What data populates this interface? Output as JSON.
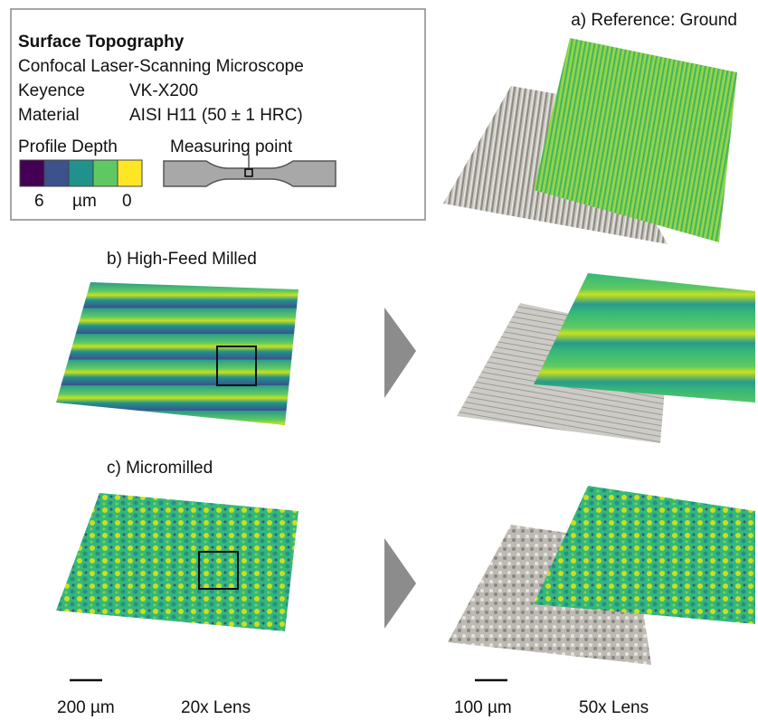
{
  "legend": {
    "title": "Surface Topography",
    "instrument": "Confocal Laser-Scanning Microscope",
    "rows": [
      [
        "Keyence",
        "VK-X200"
      ],
      [
        "Material",
        "AISI H11 (50 ± 1 HRC)"
      ]
    ],
    "colorbar": {
      "label": "Profile Depth",
      "min": 6,
      "unit": "µm",
      "max": 0
    },
    "specimen_label": "Measuring point"
  },
  "panels": [
    {
      "label": "a) Reference: Ground"
    },
    {
      "label": "b) High-Feed Milled"
    },
    {
      "label": "c) Micromilled"
    }
  ],
  "scale_bars": [
    {
      "length": "200 µm",
      "lens": "20x Lens"
    },
    {
      "length": "100 µm",
      "lens": "50x Lens"
    }
  ]
}
